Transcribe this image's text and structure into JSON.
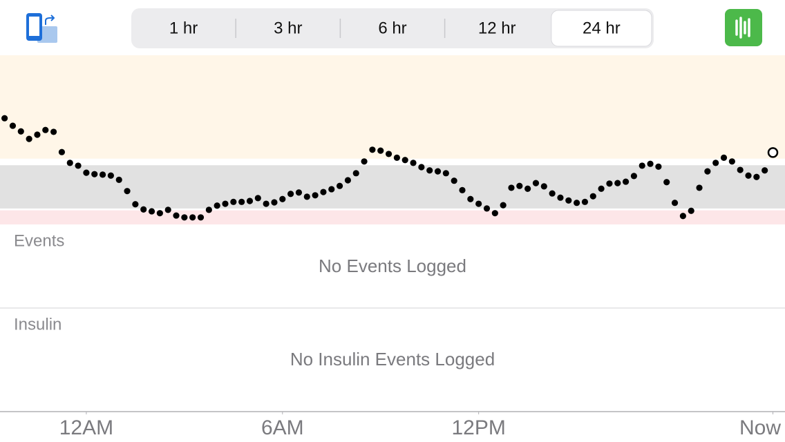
{
  "toolbar": {
    "ranges": [
      "1 hr",
      "3 hr",
      "6 hr",
      "12 hr",
      "24 hr"
    ],
    "selected": 4
  },
  "chart_data": {
    "type": "scatter",
    "color": "#000000",
    "x": [
      -2.5,
      -2.25,
      -2,
      -1.75,
      -1.5,
      -1.25,
      -1,
      -0.75,
      -0.5,
      -0.25,
      0,
      0.25,
      0.5,
      0.75,
      1,
      1.25,
      1.5,
      1.75,
      2,
      2.25,
      2.5,
      2.75,
      3,
      3.25,
      3.5,
      3.75,
      4,
      4.25,
      4.5,
      4.75,
      5,
      5.25,
      5.5,
      5.75,
      6,
      6.25,
      6.5,
      6.75,
      7,
      7.25,
      7.5,
      7.75,
      8,
      8.25,
      8.5,
      8.75,
      9,
      9.25,
      9.5,
      9.75,
      10,
      10.25,
      10.5,
      10.75,
      11,
      11.25,
      11.5,
      11.75,
      12,
      12.25,
      12.5,
      12.75,
      13,
      13.25,
      13.5,
      13.75,
      14,
      14.25,
      14.5,
      14.75,
      15,
      15.25,
      15.5,
      15.75,
      16,
      16.25,
      16.5,
      16.75,
      17,
      17.25,
      17.5,
      17.75,
      18,
      18.25,
      18.5,
      18.75,
      19,
      19.25,
      19.5,
      19.75,
      20,
      20.25,
      20.5,
      20.75,
      21
    ],
    "values": [
      266,
      250,
      238,
      222,
      231,
      241,
      237,
      194,
      171,
      165,
      150,
      147,
      146,
      144,
      135,
      111,
      83,
      72,
      68,
      64,
      71,
      59,
      55,
      55,
      55,
      71,
      80,
      84,
      88,
      88,
      90,
      96,
      84,
      87,
      94,
      105,
      108,
      99,
      102,
      109,
      115,
      122,
      134,
      149,
      174,
      199,
      197,
      190,
      182,
      177,
      171,
      162,
      155,
      153,
      149,
      133,
      113,
      94,
      84,
      74,
      64,
      81,
      118,
      122,
      116,
      128,
      121,
      106,
      97,
      91,
      86,
      88,
      100,
      116,
      127,
      128,
      131,
      143,
      165,
      169,
      163,
      130,
      86,
      58,
      69,
      118,
      153,
      171,
      182,
      174,
      156,
      144,
      141,
      155,
      193
    ],
    "xlim": [
      -2.64,
      21.37
    ],
    "ylim": [
      40,
      400
    ],
    "xticks": [
      {
        "value": 0,
        "label": "12AM"
      },
      {
        "value": 6,
        "label": "6AM"
      },
      {
        "value": 12,
        "label": "12PM"
      },
      {
        "value": 21,
        "label": "Now"
      }
    ],
    "bands": [
      {
        "from": 180,
        "to": 400,
        "color": "#fff6e8"
      },
      {
        "from": 74,
        "to": 166,
        "color": "#e1e1e1"
      },
      {
        "from": 40,
        "to": 70,
        "color": "#fde6e8"
      }
    ]
  },
  "events": {
    "title": "Events",
    "empty": "No Events Logged"
  },
  "insulin": {
    "title": "Insulin",
    "empty": "No Insulin Events Logged"
  }
}
